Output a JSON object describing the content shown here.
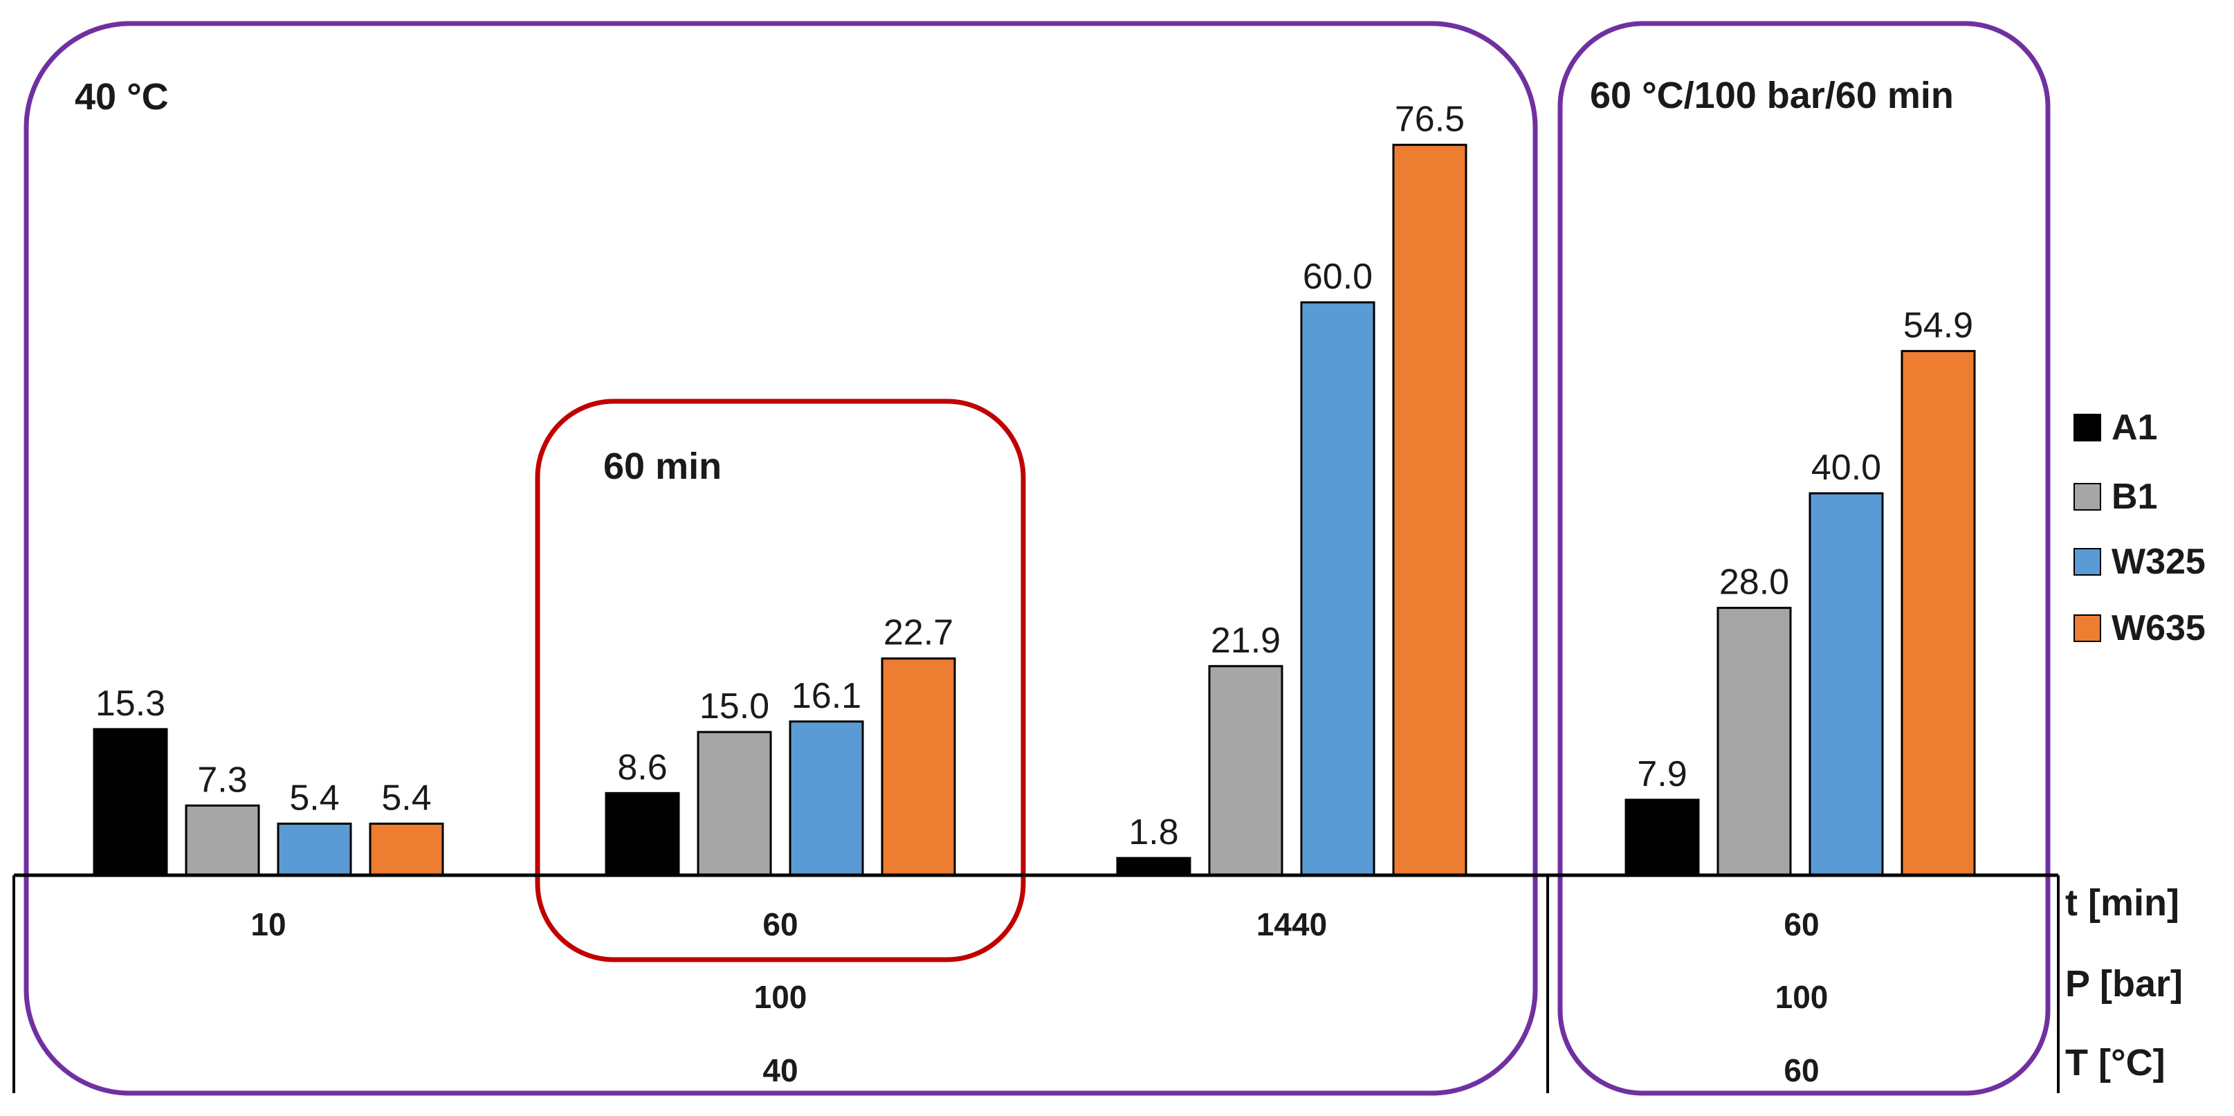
{
  "chart_data": {
    "type": "bar",
    "series_names": [
      "A1",
      "B1",
      "W325",
      "W635"
    ],
    "colors": {
      "A1": "#000000",
      "B1": "#a6a6a6",
      "W325": "#5b9bd5",
      "W635": "#ed7d31",
      "panel_box": "#7030a0",
      "highlight_box": "#c00000"
    },
    "ylim": [
      0,
      80
    ],
    "groups": [
      {
        "t": "10",
        "values": [
          15.3,
          7.3,
          5.4,
          5.4
        ],
        "labels": [
          "15.3",
          "7.3",
          "5.4",
          "5.4"
        ]
      },
      {
        "t": "60",
        "values": [
          8.6,
          15.0,
          16.1,
          22.7
        ],
        "labels": [
          "8.6",
          "15.0",
          "16.1",
          "22.7"
        ]
      },
      {
        "t": "1440",
        "values": [
          1.8,
          21.9,
          60.0,
          76.5
        ],
        "labels": [
          "1.8",
          "21.9",
          "60.0",
          "76.5"
        ]
      },
      {
        "t": "60",
        "values": [
          7.9,
          28.0,
          40.0,
          54.9
        ],
        "labels": [
          "7.9",
          "28.0",
          "40.0",
          "54.9"
        ]
      }
    ],
    "panels": [
      {
        "title": "40 °C",
        "P": "100",
        "T": "40"
      },
      {
        "title": "60 °C/100 bar/60 min",
        "P": "100",
        "T": "60"
      }
    ],
    "highlight": {
      "title": "60 min"
    },
    "row_titles": {
      "t": "t [min]",
      "P": "P [bar]",
      "T": "T [°C]"
    }
  }
}
